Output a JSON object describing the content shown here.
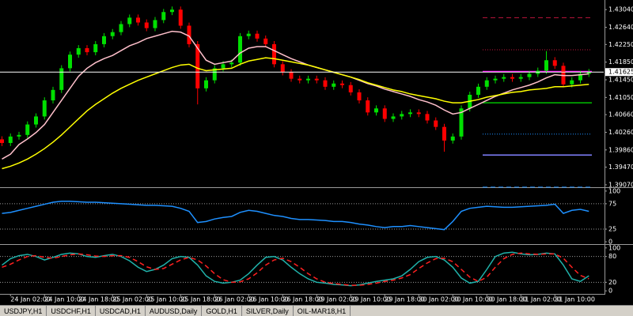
{
  "chart_data": [
    {
      "type": "candlestick",
      "categories": [
        null,
        "24 Jan 02:00",
        null,
        null,
        null,
        "24 Jan 10:00",
        null,
        null,
        null,
        "24 Jan 18:00",
        null,
        null,
        null,
        "25 Jan 02:00",
        null,
        null,
        null,
        "25 Jan 10:00",
        null,
        null,
        null,
        "25 Jan 18:00",
        null,
        null,
        null,
        "26 Jan 02:00",
        null,
        null,
        null,
        "26 Jan 10:00",
        null,
        null,
        null,
        "26 Jan 18:00",
        null,
        null,
        null,
        "29 Jan 02:00",
        null,
        null,
        null,
        "29 Jan 10:00",
        null,
        null,
        null,
        "29 Jan 18:00",
        null,
        null,
        null,
        "30 Jan 02:00",
        null,
        null,
        null,
        "30 Jan 10:00",
        null,
        null,
        null,
        "30 Jan 18:00",
        null,
        null,
        null,
        "31 Jan 02:00",
        null,
        null,
        null,
        "31 Jan 10:00",
        null,
        null,
        null,
        null
      ],
      "open": [
        1.401,
        1.40018,
        1.40164,
        1.402,
        1.40437,
        1.40619,
        1.40983,
        1.4122,
        1.41711,
        1.4202,
        1.42166,
        1.42075,
        1.42257,
        1.42439,
        1.4253,
        1.42712,
        1.42858,
        1.42748,
        1.42621,
        1.42803,
        1.42985,
        1.4304,
        1.42676,
        1.42257,
        1.41256,
        1.41438,
        1.41711,
        1.41802,
        1.41838,
        1.42439,
        1.42494,
        1.42384,
        1.42257,
        1.41802,
        1.4162,
        1.41474,
        1.41438,
        1.41474,
        1.41438,
        1.41292,
        1.41365,
        1.41329,
        1.41165,
        1.40983,
        1.4071,
        1.40801,
        1.40564,
        1.40619,
        1.40674,
        1.4071,
        1.40674,
        1.40528,
        1.40382,
        1.40073,
        1.40164,
        1.40801,
        1.4111,
        1.41292,
        1.41438,
        1.41474,
        1.41511,
        1.41474,
        1.41511,
        1.41584,
        1.41656,
        1.41893,
        1.41766,
        1.41347,
        1.41438,
        1.41584
      ],
      "high": [
        1.4017,
        1.40234,
        1.4027,
        1.40507,
        1.40689,
        1.41053,
        1.4129,
        1.41781,
        1.4209,
        1.42236,
        1.42236,
        1.42327,
        1.42509,
        1.426,
        1.42782,
        1.42928,
        1.42928,
        1.42818,
        1.42873,
        1.43055,
        1.4311,
        1.4311,
        1.42746,
        1.42327,
        1.41508,
        1.41781,
        1.41872,
        1.41908,
        1.42509,
        1.42564,
        1.42564,
        1.42454,
        1.42327,
        1.41872,
        1.4169,
        1.41544,
        1.41544,
        1.41544,
        1.41508,
        1.41435,
        1.41435,
        1.41399,
        1.41235,
        1.41053,
        1.40871,
        1.40871,
        1.40689,
        1.40744,
        1.4078,
        1.4078,
        1.40744,
        1.40598,
        1.40452,
        1.40234,
        1.40871,
        1.4118,
        1.41362,
        1.41508,
        1.41544,
        1.41581,
        1.41581,
        1.41581,
        1.41654,
        1.41726,
        1.421,
        1.41963,
        1.41836,
        1.41508,
        1.41654,
        1.41695
      ],
      "low": [
        1.39948,
        1.39948,
        1.40094,
        1.4013,
        1.40367,
        1.40549,
        1.40913,
        1.4115,
        1.41641,
        1.4195,
        1.42005,
        1.42005,
        1.42187,
        1.42369,
        1.4246,
        1.42642,
        1.42678,
        1.42551,
        1.42551,
        1.42733,
        1.42915,
        1.42606,
        1.42187,
        1.40892,
        1.41186,
        1.41368,
        1.41641,
        1.41732,
        1.41768,
        1.42369,
        1.42314,
        1.42187,
        1.41732,
        1.4155,
        1.41404,
        1.41368,
        1.41368,
        1.41368,
        1.41222,
        1.41222,
        1.41259,
        1.41095,
        1.40913,
        1.4064,
        1.4064,
        1.40494,
        1.40494,
        1.40549,
        1.40604,
        1.40604,
        1.40458,
        1.40312,
        1.3982,
        1.40003,
        1.40094,
        1.40731,
        1.4104,
        1.41222,
        1.41368,
        1.41404,
        1.41404,
        1.41404,
        1.41441,
        1.41514,
        1.41586,
        1.41696,
        1.41277,
        1.41277,
        1.41368,
        1.41514
      ],
      "close": [
        1.40018,
        1.40164,
        1.402,
        1.40437,
        1.40619,
        1.40983,
        1.4122,
        1.41711,
        1.4202,
        1.42166,
        1.42075,
        1.42257,
        1.42439,
        1.4253,
        1.42712,
        1.42858,
        1.42748,
        1.42621,
        1.42803,
        1.42985,
        1.4304,
        1.42676,
        1.42257,
        1.41256,
        1.41438,
        1.41711,
        1.41802,
        1.41838,
        1.42439,
        1.42494,
        1.42384,
        1.42257,
        1.41802,
        1.4162,
        1.41474,
        1.41438,
        1.41474,
        1.41438,
        1.41292,
        1.41365,
        1.41329,
        1.41165,
        1.40983,
        1.4071,
        1.40801,
        1.40564,
        1.40619,
        1.40674,
        1.4071,
        1.40674,
        1.40528,
        1.40382,
        1.40073,
        1.40164,
        1.40801,
        1.4111,
        1.41292,
        1.41438,
        1.41474,
        1.41511,
        1.41474,
        1.41511,
        1.41584,
        1.41656,
        1.41893,
        1.41766,
        1.41347,
        1.41438,
        1.41584,
        1.41625
      ],
      "up_color": "#00e000",
      "down_color": "#ff0000",
      "series": [
        {
          "color": "#ffc0cb",
          "values": [
            1.39654,
            1.39764,
            1.39982,
            1.40109,
            1.40255,
            1.40437,
            1.4071,
            1.40983,
            1.41256,
            1.41529,
            1.41711,
            1.41838,
            1.41929,
            1.42002,
            1.42111,
            1.42221,
            1.42293,
            1.42384,
            1.42439,
            1.42494,
            1.42548,
            1.4253,
            1.42439,
            1.42166,
            1.41893,
            1.41802,
            1.41838,
            1.41875,
            1.42057,
            1.42166,
            1.42202,
            1.42202,
            1.42111,
            1.4202,
            1.41929,
            1.41857,
            1.41784,
            1.41729,
            1.41675,
            1.4162,
            1.41565,
            1.41511,
            1.41438,
            1.41365,
            1.41311,
            1.41238,
            1.41183,
            1.41129,
            1.41074,
            1.41001,
            1.40947,
            1.40874,
            1.40765,
            1.40674,
            1.4071,
            1.40801,
            1.40892,
            1.40983,
            1.41074,
            1.41147,
            1.4122,
            1.41274,
            1.41329,
            1.41402,
            1.41493,
            1.41565,
            1.41547,
            1.41547,
            1.41565,
            1.41584
          ]
        },
        {
          "color": "#ffff00",
          "values": [
            1.39436,
            1.39491,
            1.39564,
            1.39654,
            1.39764,
            1.39891,
            1.40037,
            1.402,
            1.40382,
            1.40564,
            1.40746,
            1.40892,
            1.4102,
            1.41147,
            1.41256,
            1.41347,
            1.41438,
            1.41511,
            1.41584,
            1.41656,
            1.41729,
            1.41784,
            1.41802,
            1.41711,
            1.41656,
            1.41675,
            1.41693,
            1.41711,
            1.41802,
            1.41875,
            1.41911,
            1.41948,
            1.41929,
            1.41893,
            1.41857,
            1.4182,
            1.41784,
            1.41729,
            1.41675,
            1.4162,
            1.41565,
            1.41511,
            1.41456,
            1.41383,
            1.41329,
            1.41274,
            1.4122,
            1.41183,
            1.41129,
            1.41092,
            1.41056,
            1.4102,
            1.40965,
            1.40928,
            1.40928,
            1.40965,
            1.41001,
            1.41056,
            1.41092,
            1.41129,
            1.41165,
            1.41183,
            1.4122,
            1.41238,
            1.41256,
            1.41292,
            1.41292,
            1.41311,
            1.41329,
            1.41347
          ]
        }
      ],
      "levels": [
        {
          "value": 1.42858,
          "color": "#c0143c",
          "style": "dashed"
        },
        {
          "value": 1.4213,
          "color": "#c0143c",
          "style": "dotted"
        },
        {
          "value": 1.41638,
          "color": "#ff00ff",
          "style": "solid"
        },
        {
          "value": 1.40928,
          "color": "#00c000",
          "style": "solid"
        },
        {
          "value": 1.40219,
          "color": "#1e90ff",
          "style": "dotted"
        },
        {
          "value": 1.39745,
          "color": "#8080ff",
          "style": "solid"
        },
        {
          "value": 1.39017,
          "color": "#1e90ff",
          "style": "dashed"
        }
      ],
      "current_price": 1.41625,
      "ylim": [
        1.39015,
        1.43258
      ],
      "yticks": [
        {
          "value": 1.4304,
          "label": "1.43040"
        },
        {
          "value": 1.4264,
          "label": "1.42640"
        },
        {
          "value": 1.4225,
          "label": "1.42250"
        },
        {
          "value": 1.4185,
          "label": "1.41850"
        },
        {
          "value": 1.4145,
          "label": "1.41450"
        },
        {
          "value": 1.4105,
          "label": "1.41050"
        },
        {
          "value": 1.4066,
          "label": "1.40660"
        },
        {
          "value": 1.4026,
          "label": "1.40260"
        },
        {
          "value": 1.3986,
          "label": "1.39860"
        },
        {
          "value": 1.3947,
          "label": "1.39470"
        },
        {
          "value": 1.3907,
          "label": "1.39070"
        }
      ]
    },
    {
      "type": "line",
      "series": [
        {
          "color": "#1e90ff",
          "values": [
            56,
            58,
            62,
            66,
            70,
            74,
            78,
            80,
            80,
            79,
            78,
            78,
            77,
            76,
            75,
            74,
            73,
            72,
            72,
            71,
            70,
            66,
            60,
            38,
            40,
            45,
            48,
            50,
            58,
            62,
            60,
            56,
            52,
            50,
            46,
            44,
            44,
            43,
            42,
            40,
            40,
            38,
            35,
            33,
            30,
            28,
            30,
            30,
            32,
            30,
            28,
            26,
            24,
            40,
            60,
            66,
            68,
            70,
            69,
            68,
            68,
            69,
            70,
            71,
            72,
            74,
            56,
            62,
            64,
            60
          ]
        }
      ],
      "levels": [
        75,
        25
      ],
      "level_color": "#9a9a9a",
      "ylim": [
        -3,
        106
      ],
      "yticks": [
        100,
        75,
        25,
        0
      ]
    },
    {
      "type": "line",
      "series": [
        {
          "color": "#20b2aa",
          "style": "solid",
          "values": [
            60,
            75,
            82,
            85,
            80,
            72,
            78,
            85,
            88,
            86,
            80,
            78,
            82,
            85,
            80,
            70,
            55,
            45,
            50,
            60,
            75,
            80,
            78,
            60,
            35,
            22,
            18,
            20,
            25,
            40,
            60,
            78,
            80,
            72,
            55,
            40,
            28,
            20,
            18,
            15,
            14,
            12,
            14,
            18,
            22,
            25,
            28,
            35,
            50,
            68,
            78,
            80,
            72,
            55,
            30,
            18,
            22,
            50,
            80,
            88,
            90,
            86,
            84,
            85,
            88,
            86,
            60,
            28,
            22,
            35
          ]
        },
        {
          "color": "#ff2020",
          "style": "dashed",
          "values": [
            55,
            62,
            72,
            80,
            82,
            78,
            76,
            80,
            84,
            86,
            84,
            81,
            80,
            82,
            82,
            78,
            68,
            56,
            50,
            52,
            62,
            72,
            78,
            72,
            58,
            40,
            26,
            20,
            21,
            28,
            42,
            60,
            72,
            76,
            68,
            55,
            40,
            28,
            20,
            17,
            15,
            13,
            13,
            15,
            18,
            22,
            25,
            30,
            38,
            52,
            65,
            75,
            76,
            68,
            50,
            32,
            22,
            32,
            55,
            75,
            85,
            88,
            86,
            85,
            86,
            86,
            76,
            55,
            36,
            28
          ]
        }
      ],
      "levels": [
        80,
        20
      ],
      "level_color": "#9a9a9a",
      "ylim": [
        -7,
        107
      ],
      "yticks": [
        100,
        80,
        20,
        0
      ]
    }
  ],
  "tabs": [
    "USDJPY,H1",
    "USDCHF,H1",
    "USDCAD,H1",
    "AUDUSD,Daily",
    "GOLD,H1",
    "SILVER,Daily",
    "OIL-MAR18,H1"
  ]
}
